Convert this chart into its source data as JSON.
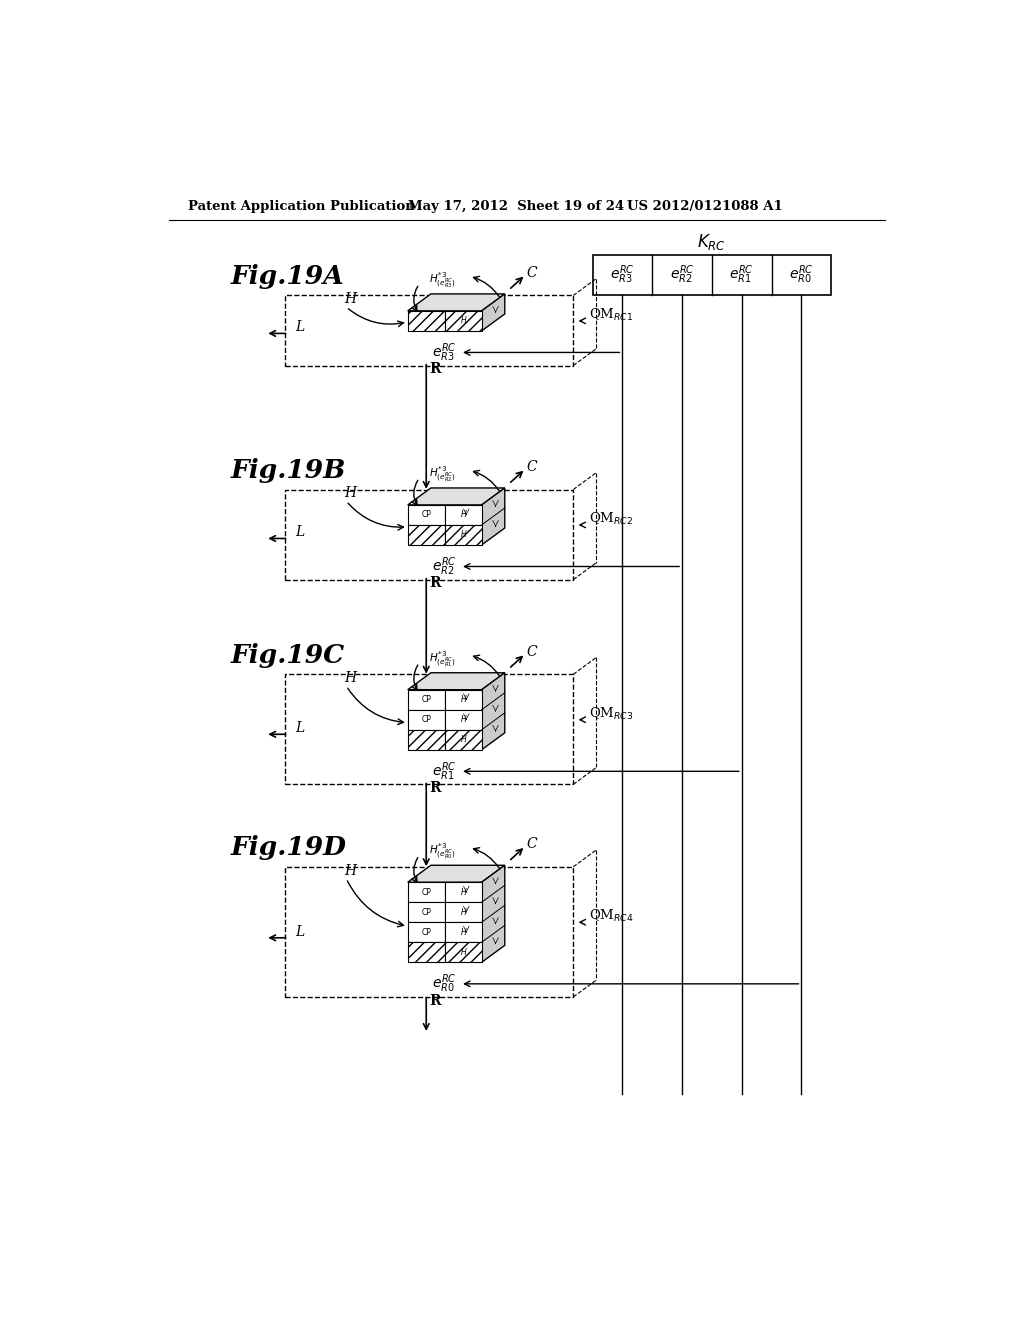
{
  "header_left": "Patent Application Publication",
  "header_mid": "May 17, 2012  Sheet 19 of 24",
  "header_right": "US 2012/0121088 A1",
  "panel_labels": [
    "Fig.19A",
    "Fig.19B",
    "Fig.19C",
    "Fig.19D"
  ],
  "qm_labels": [
    "QM$_{RC1}$",
    "QM$_{RC2}$",
    "QM$_{RC3}$",
    "QM$_{RC4}$"
  ],
  "e_labels": [
    "$e^{RC}_{R3}$",
    "$e^{RC}_{R2}$",
    "$e^{RC}_{R1}$",
    "$e^{RC}_{R0}$"
  ],
  "h_labels": [
    "$H^{*3}_{(e^{RC}_{R3})}$",
    "$H^{*3}_{(e^{RC}_{R2})}$",
    "$H^{*3}_{(e^{RC}_{R1})}$",
    "$H^{*3}_{(e^{RC}_{R0})}$"
  ],
  "krc_label": "$K_{RC}$",
  "krc_cells": [
    "$e^{RC}_{R3}$",
    "$e^{RC}_{R2}$",
    "$e^{RC}_{R1}$",
    "$e^{RC}_{R0}$"
  ],
  "rows_per_panel": [
    1,
    2,
    3,
    4
  ],
  "background_color": "#ffffff"
}
